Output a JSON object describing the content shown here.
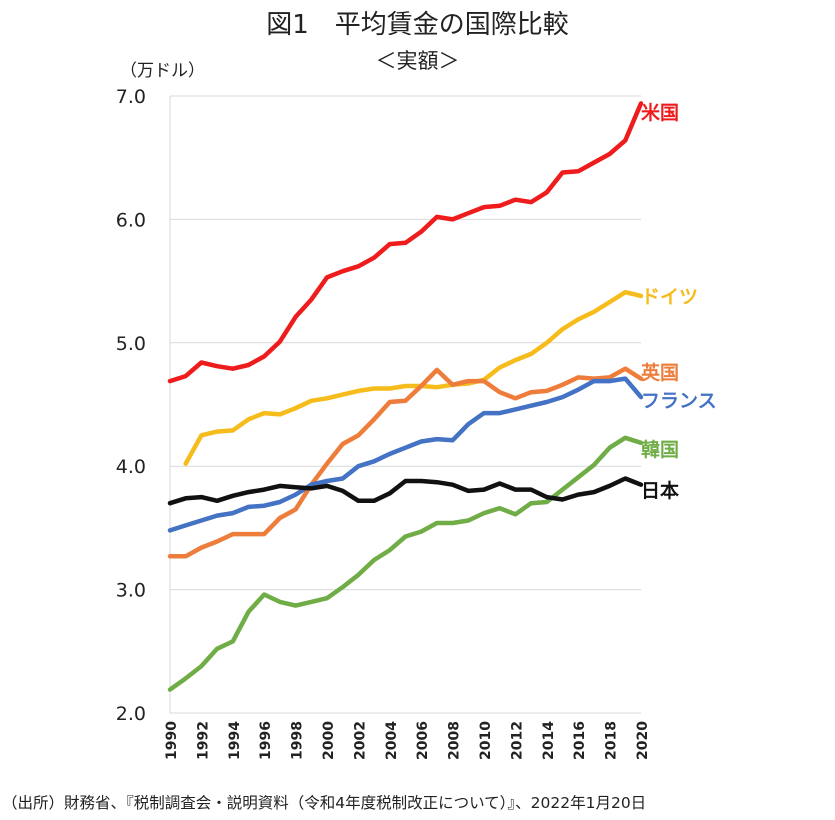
{
  "header": {
    "title": "図1　平均賃金の国際比較",
    "subtitle": "＜実額＞",
    "unit": "（万ドル）"
  },
  "footer": {
    "source": "（出所）財務省、『税制調査会・説明資料（令和4年度税制改正について）』、2022年1月20日"
  },
  "chart_data": {
    "type": "line",
    "ylabel": "（万ドル）",
    "xlabel": "",
    "ylim": [
      2.0,
      7.0
    ],
    "y_ticks": [
      "2.0",
      "3.0",
      "4.0",
      "5.0",
      "6.0",
      "7.0"
    ],
    "grid": "horizontal",
    "x": [
      1990,
      1991,
      1992,
      1993,
      1994,
      1995,
      1996,
      1997,
      1998,
      1999,
      2000,
      2001,
      2002,
      2003,
      2004,
      2005,
      2006,
      2007,
      2008,
      2009,
      2010,
      2011,
      2012,
      2013,
      2014,
      2015,
      2016,
      2017,
      2018,
      2019,
      2020
    ],
    "x_tick_labels": [
      "1990",
      "1992",
      "1994",
      "1996",
      "1998",
      "2000",
      "2002",
      "2004",
      "2006",
      "2008",
      "2010",
      "2012",
      "2014",
      "2016",
      "2018",
      "2020"
    ],
    "series": [
      {
        "name": "米国",
        "color": "#ee1c1c",
        "values": [
          4.69,
          4.73,
          4.84,
          4.81,
          4.79,
          4.82,
          4.89,
          5.01,
          5.21,
          5.35,
          5.53,
          5.58,
          5.62,
          5.69,
          5.8,
          5.81,
          5.9,
          6.02,
          6.0,
          6.05,
          6.1,
          6.11,
          6.16,
          6.14,
          6.22,
          6.38,
          6.39,
          6.46,
          6.53,
          6.64,
          6.94
        ]
      },
      {
        "name": "ドイツ",
        "color": "#f5bc1c",
        "values": [
          null,
          4.02,
          4.25,
          4.28,
          4.29,
          4.38,
          4.43,
          4.42,
          4.47,
          4.53,
          4.55,
          4.58,
          4.61,
          4.63,
          4.63,
          4.65,
          4.65,
          4.64,
          4.66,
          4.67,
          4.7,
          4.8,
          4.86,
          4.91,
          5.0,
          5.11,
          5.19,
          5.25,
          5.33,
          5.41,
          5.38
        ]
      },
      {
        "name": "英国",
        "color": "#ee7d3b",
        "values": [
          3.27,
          3.27,
          3.34,
          3.39,
          3.45,
          3.45,
          3.45,
          3.58,
          3.65,
          3.85,
          4.02,
          4.18,
          4.25,
          4.38,
          4.52,
          4.53,
          4.65,
          4.78,
          4.66,
          4.69,
          4.69,
          4.6,
          4.55,
          4.6,
          4.61,
          4.66,
          4.72,
          4.71,
          4.72,
          4.79,
          4.71
        ]
      },
      {
        "name": "フランス",
        "color": "#4472c4",
        "values": [
          3.48,
          3.52,
          3.56,
          3.6,
          3.62,
          3.67,
          3.68,
          3.71,
          3.77,
          3.85,
          3.88,
          3.9,
          4.0,
          4.04,
          4.1,
          4.15,
          4.2,
          4.22,
          4.21,
          4.34,
          4.43,
          4.43,
          4.46,
          4.49,
          4.52,
          4.56,
          4.62,
          4.69,
          4.69,
          4.71,
          4.56
        ]
      },
      {
        "name": "韓国",
        "color": "#70ad47",
        "values": [
          2.19,
          2.28,
          2.38,
          2.52,
          2.58,
          2.82,
          2.96,
          2.9,
          2.87,
          2.9,
          2.93,
          3.02,
          3.12,
          3.24,
          3.32,
          3.43,
          3.47,
          3.54,
          3.54,
          3.56,
          3.62,
          3.66,
          3.61,
          3.7,
          3.71,
          3.81,
          3.91,
          4.01,
          4.15,
          4.23,
          4.19
        ]
      },
      {
        "name": "日本",
        "color": "#111111",
        "values": [
          3.7,
          3.74,
          3.75,
          3.72,
          3.76,
          3.79,
          3.81,
          3.84,
          3.83,
          3.82,
          3.84,
          3.8,
          3.72,
          3.72,
          3.78,
          3.88,
          3.88,
          3.87,
          3.85,
          3.8,
          3.81,
          3.86,
          3.81,
          3.81,
          3.75,
          3.73,
          3.77,
          3.79,
          3.84,
          3.9,
          3.85
        ]
      }
    ]
  }
}
